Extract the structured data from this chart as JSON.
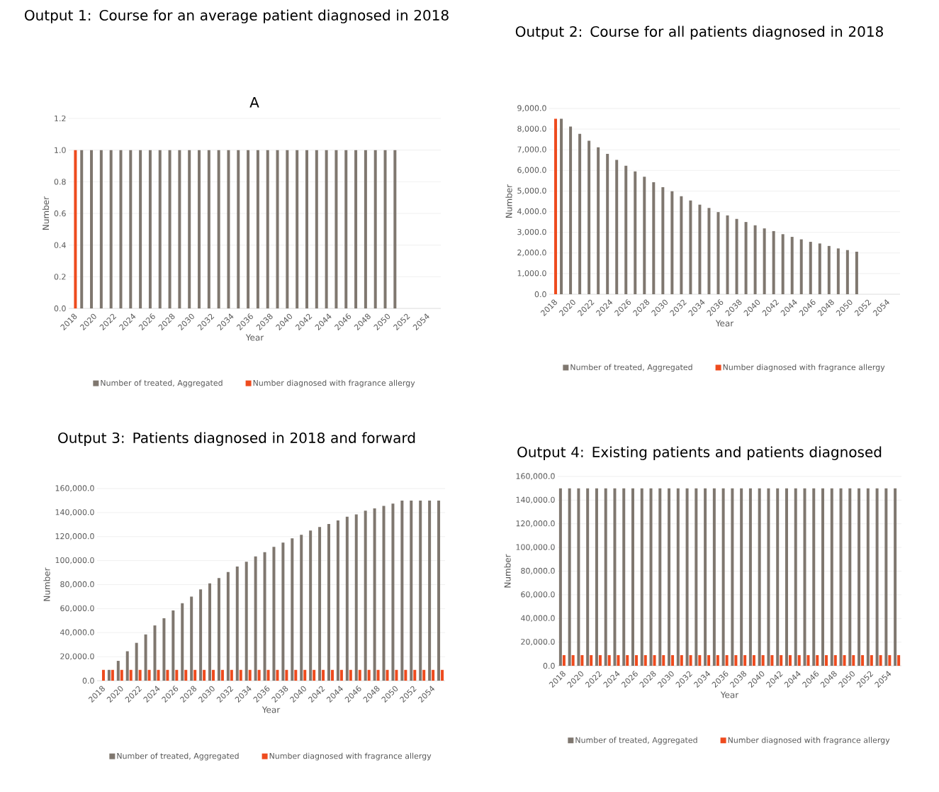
{
  "chart_data": [
    {
      "type": "bar",
      "title": "Output 1: Course for an average patient diagnosed in 2018",
      "subtitle": "A",
      "xlabel": "Year",
      "ylabel": "Number",
      "categories": [
        "2018",
        null,
        "2020",
        null,
        "2022",
        null,
        "2024",
        null,
        "2026",
        null,
        "2028",
        null,
        "2030",
        null,
        "2032",
        null,
        "2034",
        null,
        "2036",
        null,
        "2038",
        null,
        "2040",
        null,
        "2042",
        null,
        "2044",
        null,
        "2046",
        null,
        "2048",
        null,
        "2050",
        null,
        "2052",
        null,
        "2054",
        null
      ],
      "series": [
        {
          "name": "Number of treated, Aggregated",
          "color": "#7f776f",
          "values": [
            null,
            1,
            1,
            1,
            1,
            1,
            1,
            1,
            1,
            1,
            1,
            1,
            1,
            1,
            1,
            1,
            1,
            1,
            1,
            1,
            1,
            1,
            1,
            1,
            1,
            1,
            1,
            1,
            1,
            1,
            1,
            1,
            1,
            1,
            null,
            null,
            null,
            null
          ]
        },
        {
          "name": "Number diagnosed with fragrance allergy",
          "color": "#ee4b1e",
          "values": [
            1,
            null,
            null,
            null,
            null,
            null,
            null,
            null,
            null,
            null,
            null,
            null,
            null,
            null,
            null,
            null,
            null,
            null,
            null,
            null,
            null,
            null,
            null,
            null,
            null,
            null,
            null,
            null,
            null,
            null,
            null,
            null,
            null,
            null,
            null,
            null,
            null,
            null
          ]
        }
      ],
      "ylim": [
        0,
        1.2
      ],
      "yticks": [
        {
          "value": 0,
          "label": "0.0"
        },
        0.2,
        0.4,
        0.6,
        0.8,
        {
          "value": 1,
          "label": "1.0"
        },
        1.2
      ],
      "grid": "y",
      "legend": "bottom"
    },
    {
      "type": "bar",
      "title": "Output 2: Course for all patients diagnosed in 2018",
      "xlabel": "Year",
      "ylabel": "Number",
      "categories": [
        "2018",
        null,
        "2020",
        null,
        "2022",
        null,
        "2024",
        null,
        "2026",
        null,
        "2028",
        null,
        "2030",
        null,
        "2032",
        null,
        "2034",
        null,
        "2036",
        null,
        "2038",
        null,
        "2040",
        null,
        "2042",
        null,
        "2044",
        null,
        "2046",
        null,
        "2048",
        null,
        "2050",
        null,
        "2052",
        null,
        "2054",
        null
      ],
      "series": [
        {
          "name": "Number of treated, Aggregated",
          "color": "#7f776f",
          "values": [
            null,
            8500,
            8120,
            7770,
            7440,
            7120,
            6800,
            6510,
            6230,
            5950,
            5690,
            5430,
            5190,
            4990,
            4750,
            4540,
            4340,
            4180,
            3980,
            3820,
            3650,
            3500,
            3340,
            3190,
            3060,
            2910,
            2780,
            2660,
            2540,
            2460,
            2340,
            2220,
            2140,
            2060,
            null,
            null,
            null,
            null
          ]
        },
        {
          "name": "Number diagnosed with fragrance allergy",
          "color": "#ee4b1e",
          "values": [
            8500,
            null,
            null,
            null,
            null,
            null,
            null,
            null,
            null,
            null,
            null,
            null,
            null,
            null,
            null,
            null,
            null,
            null,
            null,
            null,
            null,
            null,
            null,
            null,
            null,
            null,
            null,
            null,
            null,
            null,
            null,
            null,
            null,
            null,
            null,
            null,
            null,
            null
          ]
        }
      ],
      "ylim": [
        0,
        9000
      ],
      "yticks": [
        {
          "value": 0,
          "label": "0.0"
        },
        {
          "value": 1000,
          "label": "1,000.0"
        },
        {
          "value": 2000,
          "label": "2,000.0"
        },
        {
          "value": 3000,
          "label": "3,000.0"
        },
        {
          "value": 4000,
          "label": "4,000.0"
        },
        {
          "value": 5000,
          "label": "5,000.0"
        },
        {
          "value": 6000,
          "label": "6,000.0"
        },
        {
          "value": 7000,
          "label": "7,000.0"
        },
        {
          "value": 8000,
          "label": "8,000.0"
        },
        {
          "value": 9000,
          "label": "9,000.0"
        }
      ],
      "grid": "y",
      "legend": "bottom"
    },
    {
      "type": "bar",
      "title": "Output 3: Patients diagnosed in 2018 and forward",
      "xlabel": "Year",
      "ylabel": "Number",
      "categories": [
        "2018",
        null,
        "2020",
        null,
        "2022",
        null,
        "2024",
        null,
        "2026",
        null,
        "2028",
        null,
        "2030",
        null,
        "2032",
        null,
        "2034",
        null,
        "2036",
        null,
        "2038",
        null,
        "2040",
        null,
        "2042",
        null,
        "2044",
        null,
        "2046",
        null,
        "2048",
        null,
        "2050",
        null,
        "2052",
        null,
        "2054",
        null
      ],
      "series": [
        {
          "name": "Number of treated, Aggregated",
          "color": "#7f776f",
          "values": [
            null,
            9000,
            16500,
            24500,
            31500,
            38500,
            46000,
            52000,
            58500,
            64500,
            70000,
            76000,
            81000,
            85500,
            90500,
            95000,
            99000,
            103500,
            107000,
            111500,
            115000,
            118500,
            121500,
            125000,
            128000,
            130500,
            133500,
            136500,
            138500,
            141500,
            143500,
            145500,
            147500,
            150000,
            150000,
            150000,
            150000,
            150000
          ]
        },
        {
          "name": "Number diagnosed with fragrance allergy",
          "color": "#ee4b1e",
          "values": [
            9000,
            9000,
            9000,
            9000,
            9000,
            9000,
            9000,
            9000,
            9000,
            9000,
            9000,
            9000,
            9000,
            9000,
            9000,
            9000,
            9000,
            9000,
            9000,
            9000,
            9000,
            9000,
            9000,
            9000,
            9000,
            9000,
            9000,
            9000,
            9000,
            9000,
            9000,
            9000,
            9000,
            9000,
            9000,
            9000,
            9000,
            9000
          ]
        }
      ],
      "ylim": [
        0,
        160000
      ],
      "yticks": [
        {
          "value": 0,
          "label": "0.0"
        },
        {
          "value": 20000,
          "label": "20,000.0"
        },
        {
          "value": 40000,
          "label": "40,000.0"
        },
        {
          "value": 60000,
          "label": "60,000.0"
        },
        {
          "value": 80000,
          "label": "80,000.0"
        },
        {
          "value": 100000,
          "label": "100,000.0"
        },
        {
          "value": 120000,
          "label": "120,000.0"
        },
        {
          "value": 140000,
          "label": "140,000.0"
        },
        {
          "value": 160000,
          "label": "160,000.0"
        }
      ],
      "grid": "y",
      "legend": "bottom"
    },
    {
      "type": "bar",
      "title": "Output 4: Existing patients and patients diagnosed",
      "xlabel": "Year",
      "ylabel": "Number",
      "categories": [
        "2018",
        null,
        "2020",
        null,
        "2022",
        null,
        "2024",
        null,
        "2026",
        null,
        "2028",
        null,
        "2030",
        null,
        "2032",
        null,
        "2034",
        null,
        "2036",
        null,
        "2038",
        null,
        "2040",
        null,
        "2042",
        null,
        "2044",
        null,
        "2046",
        null,
        "2048",
        null,
        "2050",
        null,
        "2052",
        null,
        "2054",
        null
      ],
      "series": [
        {
          "name": "Number of treated, Aggregated",
          "color": "#7f776f",
          "values": [
            150000,
            150000,
            150000,
            150000,
            150000,
            150000,
            150000,
            150000,
            150000,
            150000,
            150000,
            150000,
            150000,
            150000,
            150000,
            150000,
            150000,
            150000,
            150000,
            150000,
            150000,
            150000,
            150000,
            150000,
            150000,
            150000,
            150000,
            150000,
            150000,
            150000,
            150000,
            150000,
            150000,
            150000,
            150000,
            150000,
            150000,
            150000
          ]
        },
        {
          "name": "Number diagnosed with fragrance allergy",
          "color": "#ee4b1e",
          "values": [
            9000,
            9000,
            9000,
            9000,
            9000,
            9000,
            9000,
            9000,
            9000,
            9000,
            9000,
            9000,
            9000,
            9000,
            9000,
            9000,
            9000,
            9000,
            9000,
            9000,
            9000,
            9000,
            9000,
            9000,
            9000,
            9000,
            9000,
            9000,
            9000,
            9000,
            9000,
            9000,
            9000,
            9000,
            9000,
            9000,
            9000,
            9000
          ]
        }
      ],
      "ylim": [
        0,
        160000
      ],
      "yticks": [
        {
          "value": 0,
          "label": "0.0"
        },
        {
          "value": 20000,
          "label": "20,000.0"
        },
        {
          "value": 40000,
          "label": "40,000.0"
        },
        {
          "value": 60000,
          "label": "60,000.0"
        },
        {
          "value": 80000,
          "label": "80,000.0"
        },
        {
          "value": 100000,
          "label": "100,000.0"
        },
        {
          "value": 120000,
          "label": "120,000.0"
        },
        {
          "value": 140000,
          "label": "140,000.0"
        },
        {
          "value": 160000,
          "label": "160,000.0"
        }
      ],
      "grid": "y",
      "legend": "bottom"
    }
  ]
}
